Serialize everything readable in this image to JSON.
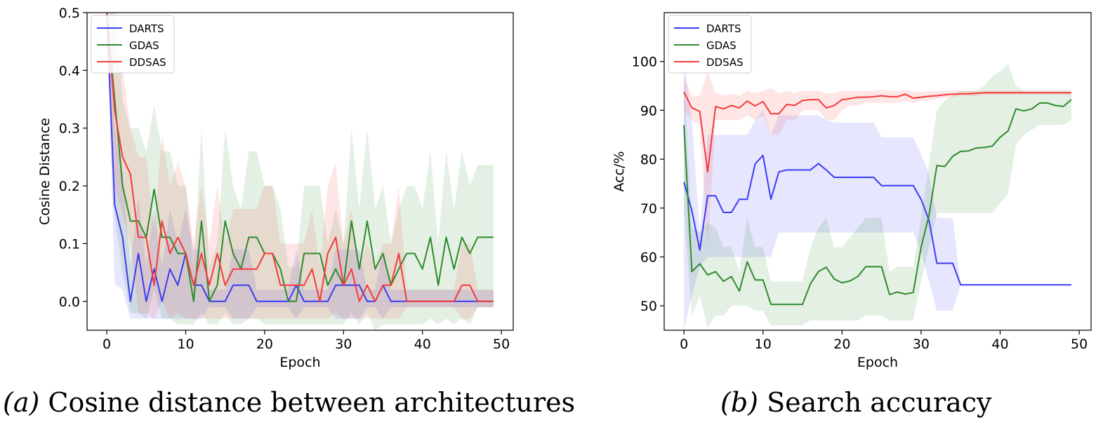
{
  "colors": {
    "DARTS": "#3b3bf5",
    "GDAS": "#2e8b2e",
    "DDSAS": "#f53b3b"
  },
  "captions": [
    {
      "label": "(a)",
      "text": "Cosine distance between architectures"
    },
    {
      "label": "(b)",
      "text": "Search accuracy"
    }
  ],
  "chart_data": [
    {
      "type": "line",
      "xlabel": "Epoch",
      "ylabel": "Cosine Distance",
      "xlim": [
        -2.5,
        51.5
      ],
      "ylim": [
        -0.05,
        0.5
      ],
      "xticks": [
        0,
        10,
        20,
        30,
        40,
        50
      ],
      "yticks": [
        0.0,
        0.1,
        0.2,
        0.3,
        0.4,
        0.5
      ],
      "ytick_decimals": 1,
      "legend": {
        "placement": "upper-left",
        "entries": [
          "DARTS",
          "GDAS",
          "DDSAS"
        ]
      },
      "grid": false,
      "x": [
        0,
        1,
        2,
        3,
        4,
        5,
        6,
        7,
        8,
        9,
        10,
        11,
        12,
        13,
        14,
        15,
        16,
        17,
        18,
        19,
        20,
        21,
        22,
        23,
        24,
        25,
        26,
        27,
        28,
        29,
        30,
        31,
        32,
        33,
        34,
        35,
        36,
        37,
        38,
        39,
        40,
        41,
        42,
        43,
        44,
        45,
        46,
        47,
        48,
        49
      ],
      "series": [
        {
          "name": "DARTS",
          "values": [
            0.5,
            0.167,
            0.111,
            0.0,
            0.083,
            0.0,
            0.056,
            0.0,
            0.056,
            0.028,
            0.083,
            0.028,
            0.028,
            0.0,
            0.0,
            0.0,
            0.028,
            0.028,
            0.028,
            0.0,
            0.0,
            0.0,
            0.0,
            0.0,
            0.028,
            0.0,
            0.0,
            0.0,
            0.0,
            0.028,
            0.028,
            0.028,
            0.028,
            0.0,
            0.0,
            0.028,
            0.0,
            0.0,
            0.0,
            0.0,
            0.0,
            0.0,
            0.0,
            0.0,
            0.0,
            0.0,
            0.0,
            0.0,
            0.0,
            0.0
          ],
          "lower": [
            0.5,
            0.03,
            0.02,
            -0.03,
            -0.03,
            -0.03,
            -0.03,
            -0.03,
            -0.03,
            -0.03,
            -0.03,
            -0.03,
            -0.03,
            -0.01,
            -0.01,
            -0.01,
            -0.03,
            -0.03,
            -0.03,
            -0.01,
            -0.01,
            -0.01,
            -0.01,
            -0.01,
            -0.03,
            -0.01,
            -0.01,
            -0.01,
            -0.01,
            -0.03,
            -0.03,
            -0.03,
            -0.03,
            -0.01,
            -0.01,
            -0.03,
            -0.01,
            -0.01,
            -0.01,
            -0.01,
            -0.01,
            -0.01,
            -0.01,
            -0.01,
            -0.01,
            -0.01,
            -0.01,
            -0.01,
            -0.01,
            -0.01
          ],
          "upper": [
            0.5,
            0.3,
            0.22,
            0.06,
            0.18,
            0.06,
            0.16,
            0.06,
            0.16,
            0.1,
            0.16,
            0.09,
            0.09,
            0.02,
            0.02,
            0.02,
            0.09,
            0.09,
            0.09,
            0.02,
            0.02,
            0.02,
            0.02,
            0.02,
            0.09,
            0.02,
            0.02,
            0.02,
            0.02,
            0.09,
            0.09,
            0.09,
            0.09,
            0.02,
            0.02,
            0.09,
            0.02,
            0.02,
            0.02,
            0.02,
            0.02,
            0.02,
            0.02,
            0.02,
            0.02,
            0.02,
            0.02,
            0.02,
            0.02,
            0.02
          ]
        },
        {
          "name": "GDAS",
          "values": [
            0.5,
            0.35,
            0.2,
            0.139,
            0.139,
            0.111,
            0.194,
            0.111,
            0.111,
            0.083,
            0.083,
            0.0,
            0.139,
            0.0,
            0.028,
            0.139,
            0.083,
            0.056,
            0.111,
            0.111,
            0.083,
            0.083,
            0.056,
            0.0,
            0.0,
            0.083,
            0.083,
            0.083,
            0.028,
            0.056,
            0.028,
            0.139,
            0.056,
            0.139,
            0.056,
            0.083,
            0.028,
            0.056,
            0.083,
            0.083,
            0.056,
            0.111,
            0.028,
            0.111,
            0.056,
            0.111,
            0.083,
            0.111,
            0.111,
            0.111
          ],
          "lower": [
            0.5,
            0.15,
            0.05,
            -0.02,
            -0.02,
            -0.03,
            0.02,
            -0.03,
            -0.03,
            -0.04,
            -0.04,
            -0.04,
            -0.02,
            -0.04,
            -0.04,
            -0.02,
            -0.04,
            -0.04,
            -0.03,
            -0.03,
            -0.04,
            -0.04,
            -0.04,
            -0.04,
            -0.04,
            -0.04,
            -0.04,
            -0.04,
            -0.04,
            -0.04,
            -0.04,
            -0.02,
            -0.04,
            -0.02,
            -0.05,
            -0.04,
            -0.04,
            -0.04,
            -0.04,
            -0.04,
            -0.04,
            -0.03,
            -0.04,
            -0.03,
            -0.04,
            -0.03,
            -0.04,
            -0.01,
            -0.01,
            -0.01
          ],
          "upper": [
            0.5,
            0.55,
            0.35,
            0.3,
            0.3,
            0.26,
            0.34,
            0.26,
            0.26,
            0.2,
            0.2,
            0.06,
            0.3,
            0.06,
            0.1,
            0.3,
            0.2,
            0.16,
            0.26,
            0.26,
            0.2,
            0.2,
            0.16,
            0.06,
            0.06,
            0.2,
            0.2,
            0.2,
            0.1,
            0.16,
            0.1,
            0.3,
            0.16,
            0.3,
            0.16,
            0.2,
            0.1,
            0.16,
            0.2,
            0.2,
            0.16,
            0.26,
            0.1,
            0.26,
            0.16,
            0.26,
            0.2,
            0.236,
            0.236,
            0.236
          ]
        },
        {
          "name": "DDSAS",
          "values": [
            0.5,
            0.33,
            0.25,
            0.22,
            0.111,
            0.111,
            0.028,
            0.139,
            0.083,
            0.111,
            0.083,
            0.028,
            0.083,
            0.028,
            0.083,
            0.028,
            0.056,
            0.056,
            0.056,
            0.056,
            0.083,
            0.083,
            0.028,
            0.028,
            0.028,
            0.028,
            0.056,
            0.0,
            0.083,
            0.111,
            0.028,
            0.056,
            0.0,
            0.028,
            0.0,
            0.028,
            0.028,
            0.083,
            0.0,
            0.0,
            0.0,
            0.0,
            0.0,
            0.0,
            0.0,
            0.028,
            0.028,
            0.0,
            0.0,
            0.0
          ],
          "lower": [
            0.5,
            0.2,
            0.15,
            0.1,
            -0.02,
            -0.02,
            -0.03,
            0.0,
            -0.03,
            -0.02,
            -0.03,
            -0.03,
            -0.03,
            -0.03,
            -0.03,
            -0.03,
            -0.03,
            -0.03,
            -0.03,
            -0.03,
            -0.03,
            -0.03,
            -0.03,
            -0.03,
            -0.03,
            -0.03,
            -0.03,
            -0.03,
            -0.03,
            -0.02,
            -0.03,
            -0.03,
            -0.03,
            -0.03,
            -0.03,
            -0.03,
            -0.03,
            -0.03,
            -0.01,
            -0.01,
            -0.01,
            -0.01,
            -0.01,
            -0.01,
            -0.01,
            -0.03,
            -0.03,
            -0.01,
            -0.01,
            -0.01
          ],
          "upper": [
            0.5,
            0.45,
            0.4,
            0.3,
            0.25,
            0.25,
            0.12,
            0.29,
            0.2,
            0.24,
            0.2,
            0.1,
            0.2,
            0.1,
            0.2,
            0.1,
            0.16,
            0.16,
            0.16,
            0.16,
            0.2,
            0.2,
            0.1,
            0.1,
            0.1,
            0.1,
            0.16,
            0.06,
            0.2,
            0.24,
            0.1,
            0.16,
            0.06,
            0.1,
            0.06,
            0.1,
            0.1,
            0.2,
            0.02,
            0.02,
            0.02,
            0.02,
            0.02,
            0.02,
            0.02,
            0.1,
            0.1,
            0.02,
            0.02,
            0.02
          ]
        }
      ]
    },
    {
      "type": "line",
      "xlabel": "Epoch",
      "ylabel": "Acc/%",
      "xlim": [
        -2.5,
        51.5
      ],
      "ylim": [
        45,
        110
      ],
      "xticks": [
        0,
        10,
        20,
        30,
        40,
        50
      ],
      "yticks": [
        50,
        60,
        70,
        80,
        90,
        100
      ],
      "ytick_decimals": 0,
      "legend": {
        "placement": "upper-left",
        "entries": [
          "DARTS",
          "GDAS",
          "DDSAS"
        ]
      },
      "grid": false,
      "x": [
        0,
        1,
        2,
        3,
        4,
        5,
        6,
        7,
        8,
        9,
        10,
        11,
        12,
        13,
        14,
        15,
        16,
        17,
        18,
        19,
        20,
        21,
        22,
        23,
        24,
        25,
        26,
        27,
        28,
        29,
        30,
        31,
        32,
        33,
        34,
        35,
        36,
        37,
        38,
        39,
        40,
        41,
        42,
        43,
        44,
        45,
        46,
        47,
        48,
        49
      ],
      "series": [
        {
          "name": "DARTS",
          "values": [
            75.3,
            69.5,
            61.4,
            72.5,
            72.5,
            69.1,
            69.1,
            71.8,
            71.8,
            79.0,
            80.8,
            71.8,
            77.4,
            77.8,
            77.8,
            77.8,
            77.8,
            79.1,
            77.8,
            76.3,
            76.3,
            76.3,
            76.3,
            76.3,
            76.3,
            74.6,
            74.6,
            74.6,
            74.6,
            74.6,
            71.8,
            67.5,
            58.7,
            58.7,
            58.7,
            54.3,
            54.3,
            54.3,
            54.3,
            54.3,
            54.3,
            54.3,
            54.3,
            54.3,
            54.3,
            54.3,
            54.3,
            54.3,
            54.3,
            54.3
          ],
          "lower": [
            45.0,
            52.0,
            58.0,
            60.0,
            60.0,
            60.0,
            60.0,
            60.0,
            60.0,
            60.0,
            60.0,
            60.0,
            65.0,
            65.0,
            65.0,
            65.0,
            65.0,
            65.0,
            65.0,
            65.0,
            65.0,
            65.0,
            65.0,
            65.0,
            65.0,
            65.0,
            65.0,
            65.0,
            65.0,
            65.0,
            61.0,
            55.0,
            49.0,
            49.0,
            49.0,
            54.3,
            54.3,
            54.3,
            54.3,
            54.3,
            54.3,
            54.3,
            54.3,
            54.3,
            54.3,
            54.3,
            54.3,
            54.3,
            54.3,
            54.3
          ],
          "upper": [
            100.0,
            88.0,
            65.0,
            85.0,
            85.0,
            85.0,
            85.0,
            85.0,
            85.0,
            88.0,
            90.0,
            85.0,
            89.0,
            89.0,
            89.0,
            89.0,
            89.0,
            89.0,
            88.0,
            87.5,
            87.5,
            87.5,
            87.5,
            87.5,
            87.5,
            84.5,
            84.5,
            84.5,
            84.5,
            84.5,
            81.0,
            77.0,
            68.0,
            68.0,
            68.0,
            54.3,
            54.3,
            54.3,
            54.3,
            54.3,
            54.3,
            54.3,
            54.3,
            54.3,
            54.3,
            54.3,
            54.3,
            54.3,
            54.3,
            54.3
          ]
        },
        {
          "name": "GDAS",
          "values": [
            87.0,
            57.0,
            58.6,
            56.3,
            57.0,
            55.0,
            56.0,
            53.0,
            59.0,
            55.3,
            55.3,
            50.3,
            50.3,
            50.3,
            50.3,
            50.3,
            54.5,
            57.0,
            57.9,
            55.5,
            54.7,
            55.1,
            56.0,
            58.0,
            58.0,
            58.0,
            52.3,
            52.8,
            52.4,
            52.7,
            62.0,
            68.5,
            78.7,
            78.5,
            80.6,
            81.6,
            81.7,
            82.3,
            82.4,
            82.7,
            84.5,
            85.8,
            90.3,
            89.9,
            90.3,
            91.5,
            91.5,
            91.0,
            90.8,
            92.2
          ],
          "lower": [
            70.0,
            48.0,
            52.0,
            45.5,
            48.0,
            48.0,
            50.0,
            50.0,
            50.0,
            49.0,
            49.0,
            46.0,
            46.0,
            46.0,
            46.0,
            46.0,
            47.0,
            47.0,
            47.0,
            47.0,
            47.0,
            47.0,
            47.0,
            48.0,
            48.0,
            48.0,
            47.0,
            47.0,
            47.0,
            47.0,
            55.0,
            62.0,
            69.0,
            69.0,
            69.0,
            69.0,
            69.0,
            69.0,
            69.0,
            69.0,
            71.0,
            73.0,
            83.0,
            85.0,
            86.0,
            87.0,
            87.0,
            87.0,
            87.0,
            88.0
          ],
          "upper": [
            96.0,
            66.0,
            65.0,
            67.0,
            66.0,
            62.0,
            62.0,
            57.0,
            68.0,
            62.0,
            62.0,
            55.0,
            55.0,
            55.0,
            55.0,
            55.0,
            62.0,
            66.0,
            68.0,
            62.0,
            62.0,
            64.0,
            66.0,
            68.0,
            68.0,
            68.0,
            57.0,
            58.0,
            58.0,
            58.0,
            68.0,
            79.0,
            90.0,
            92.0,
            93.0,
            94.0,
            94.0,
            94.0,
            95.0,
            97.0,
            98.0,
            99.5,
            95.0,
            94.0,
            94.0,
            94.0,
            94.0,
            94.0,
            94.0,
            94.0
          ]
        },
        {
          "name": "DDSAS",
          "values": [
            93.8,
            90.5,
            89.8,
            77.4,
            90.8,
            90.3,
            91.0,
            90.5,
            91.9,
            90.9,
            91.8,
            89.3,
            89.3,
            91.2,
            91.0,
            92.0,
            92.2,
            92.2,
            90.5,
            91.0,
            92.2,
            92.4,
            92.7,
            92.7,
            92.8,
            93.0,
            92.8,
            92.8,
            93.3,
            92.5,
            92.7,
            92.9,
            93.0,
            93.2,
            93.3,
            93.4,
            93.4,
            93.5,
            93.6,
            93.6,
            93.6,
            93.6,
            93.6,
            93.6,
            93.6,
            93.6,
            93.6,
            93.6,
            93.6,
            93.6
          ],
          "lower": [
            90.0,
            88.0,
            87.0,
            62.0,
            88.0,
            88.0,
            88.0,
            88.0,
            89.0,
            88.0,
            89.0,
            85.0,
            85.0,
            88.0,
            88.0,
            90.0,
            90.0,
            90.0,
            88.0,
            88.0,
            90.0,
            91.0,
            91.0,
            91.5,
            91.5,
            91.5,
            91.5,
            91.5,
            92.0,
            91.5,
            92.0,
            92.0,
            92.3,
            92.5,
            92.7,
            93.0,
            93.0,
            93.0,
            93.2,
            93.2,
            93.2,
            93.2,
            93.2,
            93.2,
            93.2,
            93.2,
            93.2,
            93.2,
            93.2,
            93.2
          ],
          "upper": [
            97.0,
            93.0,
            93.0,
            98.0,
            93.5,
            93.0,
            93.5,
            93.0,
            94.0,
            93.5,
            94.0,
            94.5,
            93.5,
            94.0,
            93.5,
            94.0,
            94.0,
            94.0,
            93.5,
            93.5,
            94.0,
            94.0,
            94.0,
            94.0,
            94.0,
            94.2,
            94.0,
            94.0,
            94.2,
            93.8,
            93.8,
            93.9,
            93.9,
            94.0,
            94.0,
            94.0,
            94.0,
            94.0,
            94.0,
            94.0,
            94.0,
            94.0,
            94.0,
            94.0,
            94.0,
            94.0,
            94.0,
            94.0,
            94.0,
            94.0
          ]
        }
      ]
    }
  ]
}
